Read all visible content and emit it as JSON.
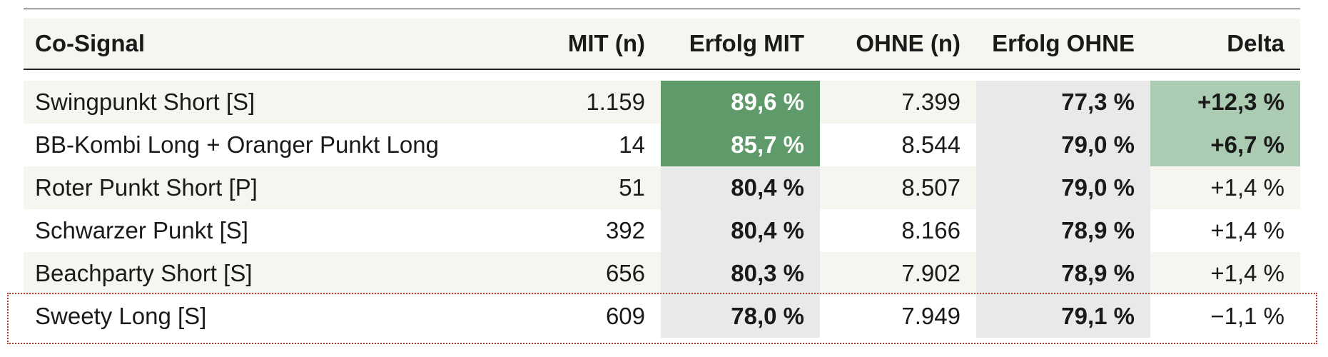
{
  "table": {
    "header": [
      "Co-Signal",
      "MIT (n)",
      "Erfolg MIT",
      "OHNE (n)",
      "Erfolg OHNE",
      "Delta"
    ],
    "rows": [
      [
        "Swingpunkt Short [S]",
        "1.159",
        "89,6 %",
        "7.399",
        "77,3 %",
        "+12,3 %"
      ],
      [
        "BB-Kombi Long + Oranger Punkt Long",
        "14",
        "85,7 %",
        "8.544",
        "79,0 %",
        "+6,7 %"
      ],
      [
        "Roter Punkt Short [P]",
        "51",
        "80,4 %",
        "8.507",
        "79,0 %",
        "+1,4 %"
      ],
      [
        "Schwarzer Punkt [S]",
        "392",
        "80,4 %",
        "8.166",
        "78,9 %",
        "+1,4 %"
      ],
      [
        "Beachparty Short [S]",
        "656",
        "80,3 %",
        "7.902",
        "78,9 %",
        "+1,4 %"
      ],
      [
        "Sweety Long [S]",
        "609",
        "78,0 %",
        "7.949",
        "79,1 %",
        "−1,1 %"
      ]
    ]
  }
}
